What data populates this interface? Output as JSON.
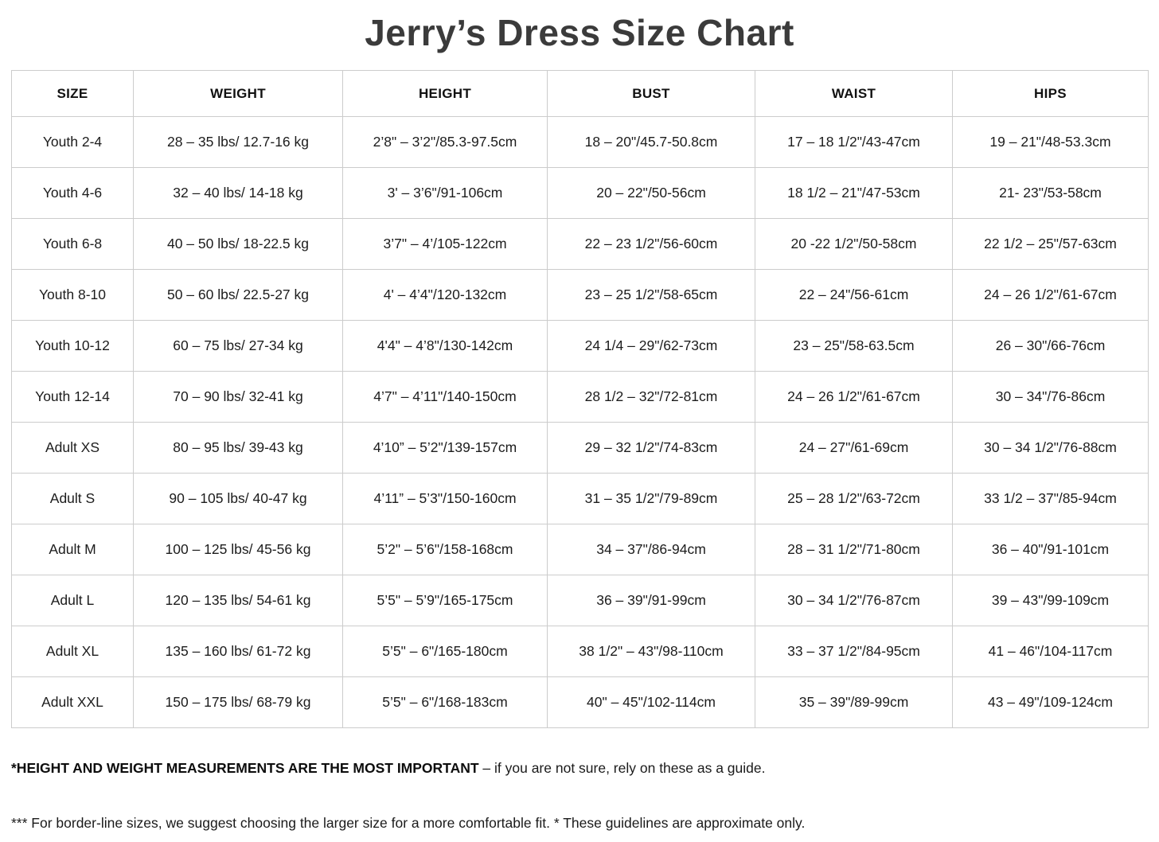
{
  "page": {
    "title": "Jerry’s Dress Size Chart"
  },
  "chart_data": {
    "type": "table",
    "title": "Jerry’s Dress Size Chart",
    "columns": [
      "SIZE",
      "WEIGHT",
      "HEIGHT",
      "BUST",
      "WAIST",
      "HIPS"
    ],
    "column_keys": [
      "size",
      "weight",
      "height",
      "bust",
      "waist",
      "hips"
    ],
    "rows": [
      {
        "size": "Youth 2-4",
        "weight": "28 – 35 lbs/ 12.7-16 kg",
        "height": "2’8\" – 3’2\"/85.3-97.5cm",
        "bust": "18 – 20\"/45.7-50.8cm",
        "waist": "17 – 18 1/2\"/43-47cm",
        "hips": "19 – 21\"/48-53.3cm"
      },
      {
        "size": "Youth 4-6",
        "weight": "32 – 40 lbs/ 14-18 kg",
        "height": "3' – 3’6\"/91-106cm",
        "bust": "20 – 22\"/50-56cm",
        "waist": "18 1/2 – 21\"/47-53cm",
        "hips": "21- 23\"/53-58cm"
      },
      {
        "size": "Youth 6-8",
        "weight": "40 – 50 lbs/ 18-22.5 kg",
        "height": "3’7\" – 4’/105-122cm",
        "bust": "22 – 23 1/2\"/56-60cm",
        "waist": "20 -22 1/2\"/50-58cm",
        "hips": "22 1/2 – 25\"/57-63cm"
      },
      {
        "size": "Youth 8-10",
        "weight": "50 – 60 lbs/ 22.5-27 kg",
        "height": "4' – 4’4\"/120-132cm",
        "bust": "23 – 25 1/2\"/58-65cm",
        "waist": "22 – 24\"/56-61cm",
        "hips": "24 – 26 1/2\"/61-67cm"
      },
      {
        "size": "Youth 10-12",
        "weight": "60 – 75 lbs/ 27-34 kg",
        "height": "4'4\" – 4’8\"/130-142cm",
        "bust": "24 1/4 – 29\"/62-73cm",
        "waist": "23 – 25\"/58-63.5cm",
        "hips": "26 – 30\"/66-76cm"
      },
      {
        "size": "Youth 12-14",
        "weight": "70 – 90 lbs/ 32-41 kg",
        "height": "4’7\" – 4’11\"/140-150cm",
        "bust": "28 1/2 – 32\"/72-81cm",
        "waist": "24 – 26 1/2\"/61-67cm",
        "hips": "30 – 34\"/76-86cm"
      },
      {
        "size": "Adult XS",
        "weight": "80 – 95 lbs/ 39-43 kg",
        "height": "4’10” – 5’2\"/139-157cm",
        "bust": "29 – 32 1/2\"/74-83cm",
        "waist": "24 – 27\"/61-69cm",
        "hips": "30 – 34 1/2\"/76-88cm"
      },
      {
        "size": "Adult S",
        "weight": "90 – 105 lbs/ 40-47 kg",
        "height": "4’11” – 5’3\"/150-160cm",
        "bust": "31 – 35 1/2\"/79-89cm",
        "waist": "25 – 28 1/2\"/63-72cm",
        "hips": "33 1/2 – 37\"/85-94cm"
      },
      {
        "size": "Adult M",
        "weight": "100 – 125 lbs/ 45-56 kg",
        "height": "5’2\" – 5’6\"/158-168cm",
        "bust": "34 – 37\"/86-94cm",
        "waist": "28 – 31 1/2\"/71-80cm",
        "hips": "36 – 40\"/91-101cm"
      },
      {
        "size": "Adult L",
        "weight": "120 – 135 lbs/ 54-61 kg",
        "height": "5’5\" – 5’9\"/165-175cm",
        "bust": "36 – 39\"/91-99cm",
        "waist": "30 – 34 1/2\"/76-87cm",
        "hips": "39 – 43\"/99-109cm"
      },
      {
        "size": "Adult XL",
        "weight": "135 – 160 lbs/ 61-72 kg",
        "height": "5’5\" – 6\"/165-180cm",
        "bust": "38 1/2\" – 43\"/98-110cm",
        "waist": "33 – 37 1/2\"/84-95cm",
        "hips": "41 – 46\"/104-117cm"
      },
      {
        "size": "Adult XXL",
        "weight": "150 – 175 lbs/ 68-79 kg",
        "height": "5’5\" – 6\"/168-183cm",
        "bust": "40\" – 45\"/102-114cm",
        "waist": "35 – 39\"/89-99cm",
        "hips": "43 – 49\"/109-124cm"
      }
    ]
  },
  "notes": {
    "note1_bold": "*HEIGHT AND WEIGHT MEASUREMENTS ARE THE MOST IMPORTANT",
    "note1_rest": " – if you are not sure, rely on these as a guide.",
    "note2": "*** For border-line sizes, we suggest choosing the larger size for a more comfortable fit. * These guidelines are approximate only."
  },
  "colors": {
    "title_text": "#3b3b3b",
    "body_text": "#1c1c1c",
    "table_border": "#cccccc",
    "background": "#ffffff"
  }
}
